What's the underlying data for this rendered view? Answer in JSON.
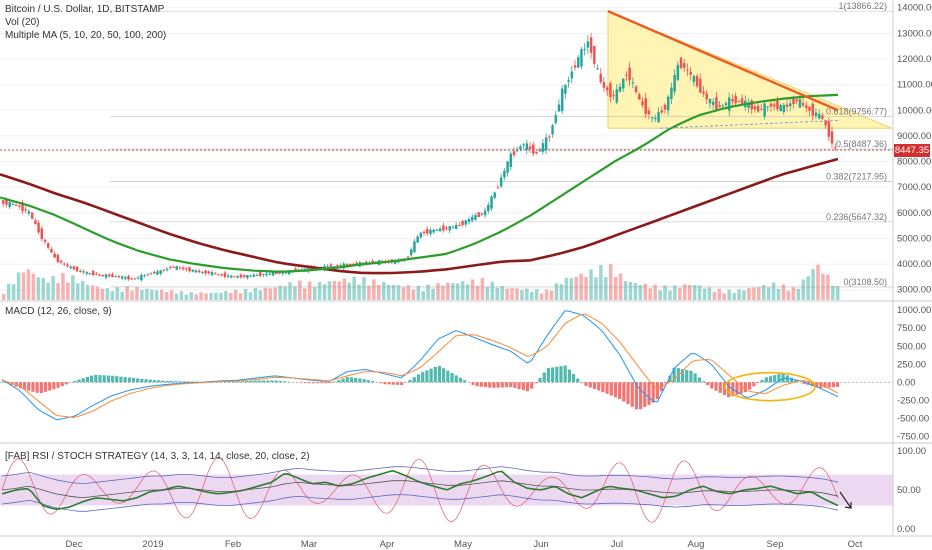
{
  "legend": {
    "title": "Bitcoin / U.S. Dollar, 1D, BITSTAMP",
    "vol": "Vol (20)",
    "ma": "Multiple MA (5, 10, 20, 50, 100, 200)",
    "macd": "MACD (12, 26, close, 9)",
    "rsi": "[FAB] RSI / STOCH STRATEGY (14, 3, 3, 14, 14, close, 20, close, 2)"
  },
  "last_price": "8447.35",
  "colors": {
    "bull": "#26a69a",
    "bear": "#ef5350",
    "ma_green": "#2a9d2a",
    "ma_maroon": "#8b1a1a",
    "triangle_fill": "#fff3a8",
    "trend": "#f05a22",
    "macd_line": "#2196f3",
    "signal_line": "#ff8a33",
    "rsi_band": "#e1bee7",
    "price_tag": "#d32f2f"
  },
  "chart_data": [
    {
      "type": "candlestick",
      "panel": "price",
      "yaxis_ticks": [
        "14000.00",
        "13000.00",
        "12000.00",
        "11000.00",
        "10000.00",
        "9000.00",
        "8000.00",
        "7000.00",
        "6000.00",
        "5000.00",
        "4000.00",
        "3000.00"
      ],
      "ylim": [
        2600,
        14300
      ],
      "xaxis_ticks": [
        "Dec",
        "2019",
        "Feb",
        "Mar",
        "Apr",
        "May",
        "Jun",
        "Jul",
        "Aug",
        "Sep",
        "Oct"
      ],
      "closes_approx": [
        6400,
        6300,
        6000,
        5000,
        4200,
        3900,
        3700,
        3600,
        3550,
        3500,
        3400,
        3600,
        3700,
        3900,
        3800,
        3700,
        3650,
        3550,
        3500,
        3550,
        3600,
        3650,
        3700,
        3800,
        3850,
        3900,
        3950,
        4000,
        4050,
        4100,
        4100,
        4200,
        5200,
        5300,
        5400,
        5500,
        5800,
        6000,
        7000,
        8200,
        8700,
        8300,
        9000,
        10700,
        11800,
        12700,
        11000,
        10500,
        11500,
        10300,
        9600,
        10200,
        11900,
        11300,
        10500,
        10100,
        10400,
        10300,
        10000,
        10200,
        10100,
        10400,
        10000,
        9700,
        8447
      ],
      "fib_levels": [
        {
          "label": "1(13866.22)",
          "value": 13866.22
        },
        {
          "label": "0.618(9756.77)",
          "value": 9756.77
        },
        {
          "label": "0.5(8487.36)",
          "value": 8487.36
        },
        {
          "label": "0.382(7217.95)",
          "value": 7217.95
        },
        {
          "label": "0.236(5647.32)",
          "value": 5647.32
        },
        {
          "label": "0(3108.50)",
          "value": 3108.5
        }
      ],
      "ma200_approx": [
        7500,
        7150,
        6750,
        6400,
        6000,
        5600,
        5200,
        4850,
        4550,
        4300,
        4050,
        3900,
        3750,
        3650,
        3650,
        3700,
        3800,
        3950,
        4100,
        4150,
        4400,
        4700,
        5100,
        5500,
        5900,
        6300,
        6700,
        7100,
        7500,
        7800,
        8100
      ],
      "ma100_approx": [
        6600,
        6300,
        5900,
        5400,
        4900,
        4500,
        4200,
        4000,
        3850,
        3750,
        3700,
        3750,
        3850,
        4000,
        4100,
        4250,
        4400,
        4800,
        5300,
        5900,
        6600,
        7300,
        8000,
        8600,
        9300,
        9800,
        10100,
        10300,
        10450,
        10550,
        10600
      ],
      "triangle": {
        "upper_from": 13866,
        "upper_to": 9700,
        "base": 9300
      }
    },
    {
      "type": "bar",
      "panel": "volume",
      "series": [
        {
          "values_approx": [
            0.25,
            0.9,
            0.55,
            0.7,
            0.45,
            0.3,
            0.35,
            0.3,
            0.25,
            0.2,
            0.2,
            0.25,
            0.3,
            0.35,
            0.5,
            0.45,
            0.55,
            0.6,
            0.5,
            0.4,
            0.35,
            0.45,
            0.5,
            0.55,
            0.35,
            0.3,
            0.25,
            0.6,
            0.75,
            0.95,
            0.5,
            0.4,
            0.35,
            0.45,
            0.3,
            0.25,
            0.35,
            0.45,
            0.3,
            1.0,
            0.35
          ]
        }
      ]
    },
    {
      "type": "line",
      "panel": "macd",
      "yaxis_ticks": [
        "1000.00",
        "750.00",
        "500.00",
        "250.00",
        "0.00",
        "-250.00",
        "-500.00",
        "-750.00"
      ],
      "ylim": [
        -800,
        1100
      ],
      "series": [
        {
          "values_approx": [
            40,
            -120,
            -380,
            -520,
            -470,
            -320,
            -190,
            -110,
            -60,
            -30,
            -10,
            0,
            20,
            30,
            60,
            90,
            60,
            30,
            10,
            150,
            180,
            120,
            60,
            300,
            600,
            720,
            620,
            520,
            430,
            250,
            650,
            1000,
            930,
            720,
            380,
            -80,
            -300,
            200,
            420,
            260,
            -60,
            -220,
            -110,
            60,
            20,
            -80,
            -200
          ]
        },
        {
          "values_approx": [
            30,
            -50,
            -260,
            -460,
            -490,
            -400,
            -260,
            -160,
            -90,
            -45,
            -20,
            -5,
            10,
            20,
            40,
            70,
            60,
            40,
            20,
            90,
            150,
            140,
            90,
            200,
            420,
            650,
            660,
            580,
            480,
            350,
            500,
            820,
            960,
            820,
            560,
            220,
            -100,
            40,
            300,
            320,
            100,
            -120,
            -160,
            -40,
            30,
            -20,
            -150
          ]
        }
      ]
    },
    {
      "type": "line",
      "panel": "rsi",
      "yaxis_ticks": [
        "100.00",
        "50.00",
        "0.00"
      ],
      "ylim": [
        -8,
        108
      ],
      "band": [
        30,
        70
      ],
      "series": [
        {
          "values_approx": [
            45,
            50,
            52,
            30,
            25,
            28,
            35,
            40,
            38,
            36,
            40,
            48,
            50,
            55,
            52,
            48,
            45,
            47,
            50,
            55,
            60,
            72,
            65,
            58,
            60,
            55,
            58,
            65,
            70,
            75,
            68,
            60,
            55,
            50,
            58,
            62,
            68,
            75,
            60,
            52,
            50,
            55,
            45,
            40,
            48,
            55,
            52,
            50,
            45,
            40,
            42,
            50,
            55,
            48,
            45,
            50,
            52,
            55,
            50,
            45,
            48,
            38,
            30
          ]
        },
        {
          "values_approx": [
            50,
            52,
            55,
            50,
            45,
            42,
            40,
            42,
            44,
            46,
            48,
            50,
            50,
            52,
            52,
            50,
            48,
            48,
            50,
            52,
            54,
            58,
            60,
            58,
            57,
            56,
            56,
            58,
            60,
            62,
            62,
            60,
            58,
            56,
            56,
            58,
            60,
            62,
            60,
            57,
            55,
            55,
            52,
            50,
            50,
            51,
            51,
            50,
            49,
            47,
            46,
            47,
            49,
            49,
            48,
            48,
            49,
            50,
            50,
            49,
            48,
            46,
            42
          ]
        }
      ]
    }
  ]
}
